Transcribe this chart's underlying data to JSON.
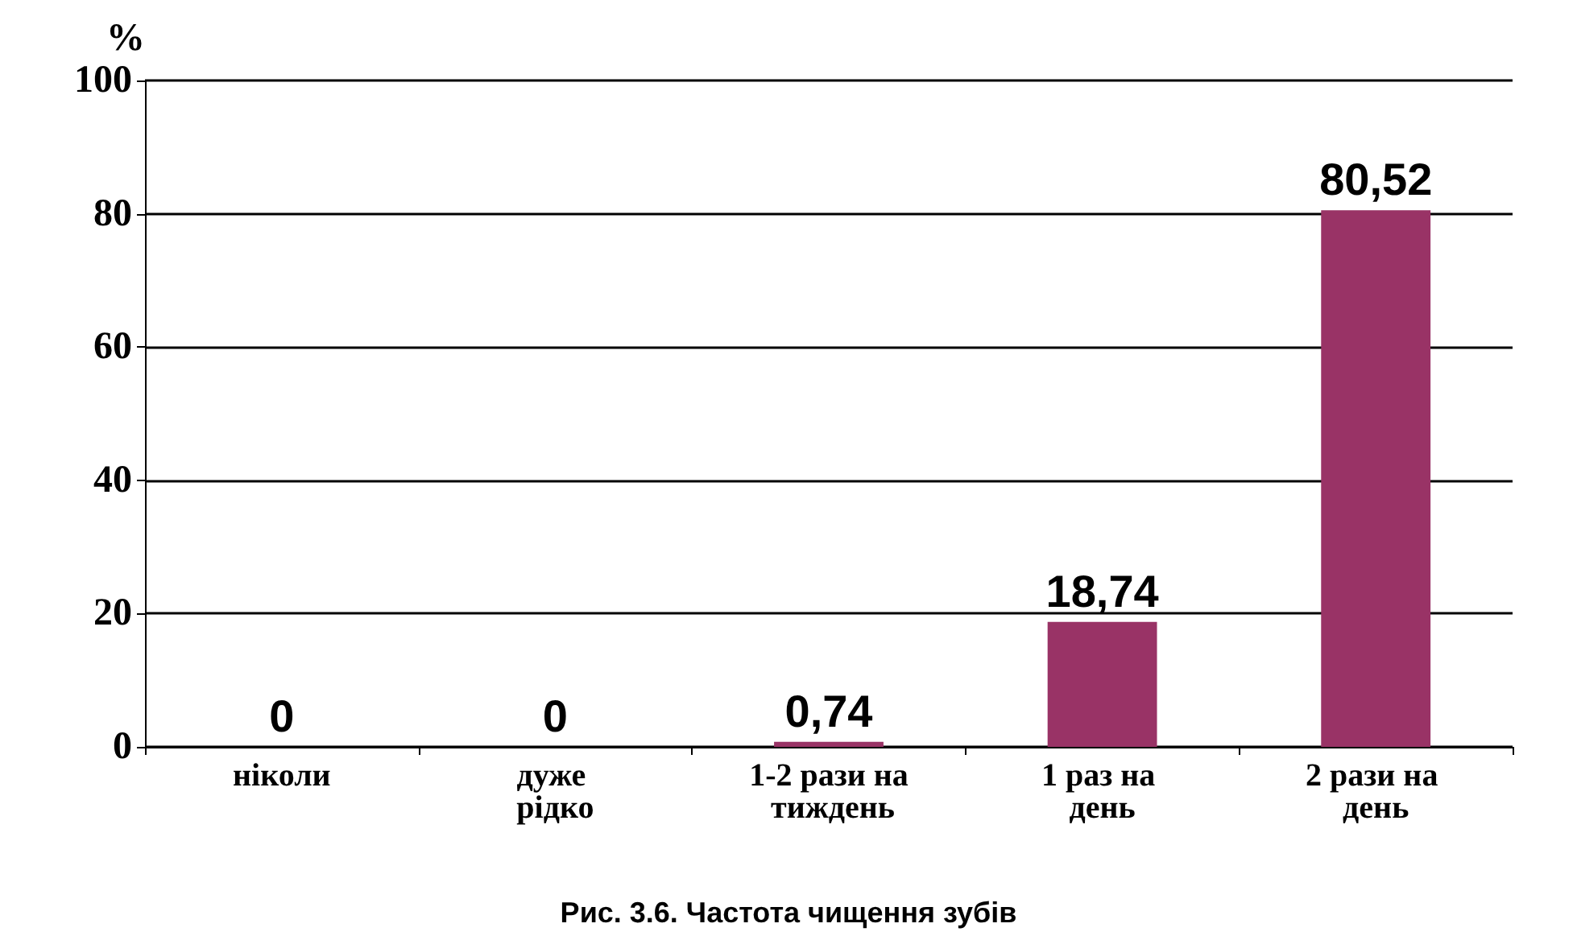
{
  "chart_data": {
    "type": "bar",
    "categories": [
      "ніколи",
      "дуже рідко",
      "1-2 рази на тиждень",
      "1 раз на день",
      "2 рази на день"
    ],
    "values": [
      0,
      0,
      0.74,
      18.74,
      80.52
    ],
    "color": "#993366",
    "ylabel": "%",
    "ylim": [
      0,
      100
    ],
    "yticks": [
      0,
      20,
      40,
      60,
      80,
      100
    ],
    "grid": "y",
    "value_labels": [
      "0",
      "0",
      "0,74",
      "18,74",
      "80,52"
    ],
    "annotations": [
      "Рис. 3.6. Частота чищення зубів"
    ]
  }
}
